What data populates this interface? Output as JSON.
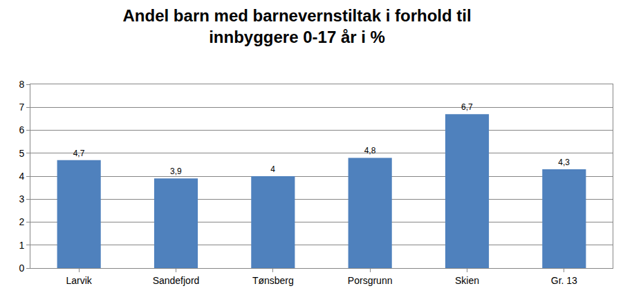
{
  "chart_data": {
    "type": "bar",
    "title": "Andel barn med barnevernstiltak i forhold til\ninnbyggere 0-17 år i %",
    "categories": [
      "Larvik",
      "Sandefjord",
      "Tønsberg",
      "Porsgrunn",
      "Skien",
      "Gr. 13"
    ],
    "values": [
      4.7,
      3.9,
      4,
      4.8,
      6.7,
      4.3
    ],
    "value_labels": [
      "4,7",
      "3,9",
      "4",
      "4,8",
      "6,7",
      "4,3"
    ],
    "color": "#4f81bd",
    "ylim": [
      0,
      8
    ],
    "yticks": [
      0,
      1,
      2,
      3,
      4,
      5,
      6,
      7,
      8
    ],
    "grid": true,
    "data_labels": true
  }
}
